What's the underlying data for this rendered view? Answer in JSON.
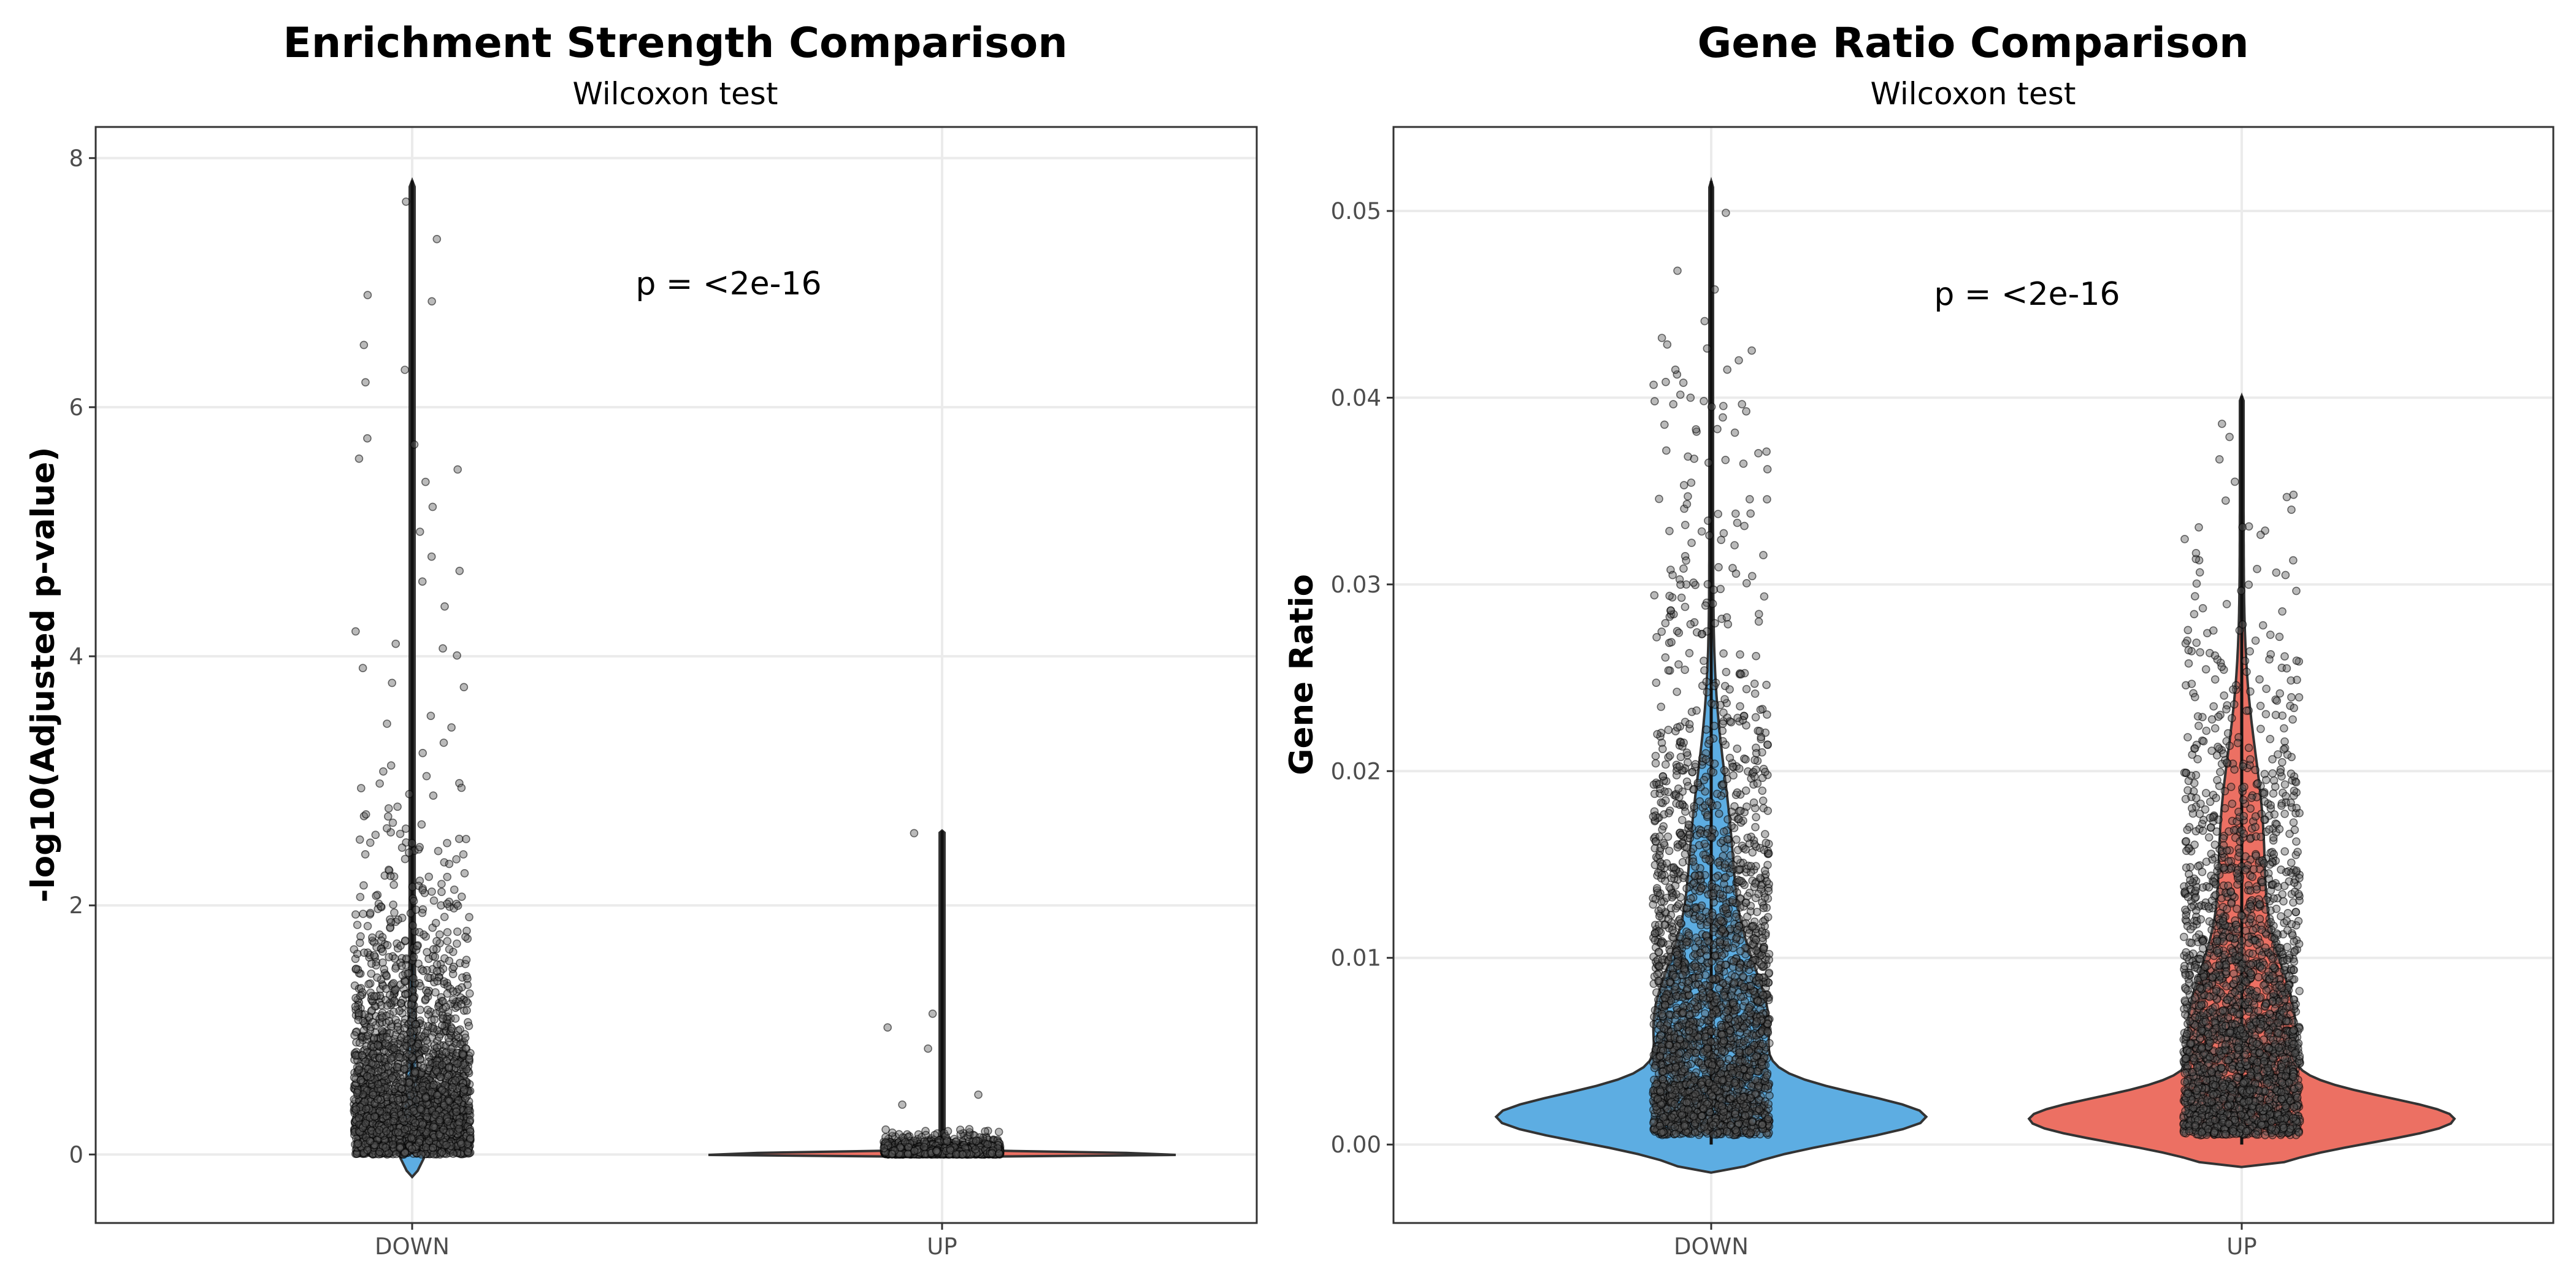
{
  "chart_data": [
    {
      "type": "violin",
      "title": "Enrichment Strength Comparison",
      "subtitle": "Wilcoxon test",
      "xlabel": "",
      "ylabel": "-log10(Adjusted p-value)",
      "categories": [
        "DOWN",
        "UP"
      ],
      "ylim": [
        -0.55,
        8.25
      ],
      "yticks": [
        0,
        2,
        4,
        6,
        8
      ],
      "yticklabels": [
        "0",
        "2",
        "4",
        "6",
        "8"
      ],
      "annotation": "p = <2e-16",
      "colors": [
        "#5DADE2",
        "#EC7063"
      ],
      "series": [
        {
          "category": "DOWN",
          "color": "#5DADE2",
          "min": -0.18,
          "max": 7.82,
          "points_approx": 2500,
          "highlight_points": [
            7.65,
            7.35,
            6.9,
            6.85,
            6.5,
            6.3,
            6.2,
            5.75,
            5.7,
            5.5,
            5.4,
            5.2,
            5.0,
            4.8,
            4.6,
            4.4,
            4.2,
            4.1
          ]
        },
        {
          "category": "UP",
          "color": "#EC7063",
          "min": 0.0,
          "max": 2.6,
          "points_approx": 1500,
          "highlight_points": [
            2.58,
            1.13,
            1.02,
            0.85,
            0.48,
            0.4
          ]
        }
      ]
    },
    {
      "type": "violin",
      "title": "Gene Ratio Comparison",
      "subtitle": "Wilcoxon test",
      "xlabel": "",
      "ylabel": "Gene Ratio",
      "categories": [
        "DOWN",
        "UP"
      ],
      "ylim": [
        -0.0042,
        0.0545
      ],
      "yticks": [
        0,
        0.01,
        0.02,
        0.03,
        0.04,
        0.05
      ],
      "yticklabels": [
        "0.00",
        "0.01",
        "0.02",
        "0.03",
        "0.04",
        "0.05"
      ],
      "annotation": "p = <2e-16",
      "colors": [
        "#5DADE2",
        "#EC7063"
      ],
      "series": [
        {
          "category": "DOWN",
          "color": "#5DADE2",
          "min": -0.0015,
          "max": 0.0516,
          "points_approx": 2600,
          "highlight_points": [
            0.0499,
            0.0468,
            0.0458,
            0.0441,
            0.0432,
            0.042,
            0.0415,
            0.0408,
            0.04
          ]
        },
        {
          "category": "UP",
          "color": "#EC7063",
          "min": -0.0012,
          "max": 0.0401,
          "points_approx": 2400,
          "highlight_points": [
            0.0386,
            0.0379,
            0.0367,
            0.0355,
            0.0348,
            0.034
          ]
        }
      ]
    }
  ]
}
